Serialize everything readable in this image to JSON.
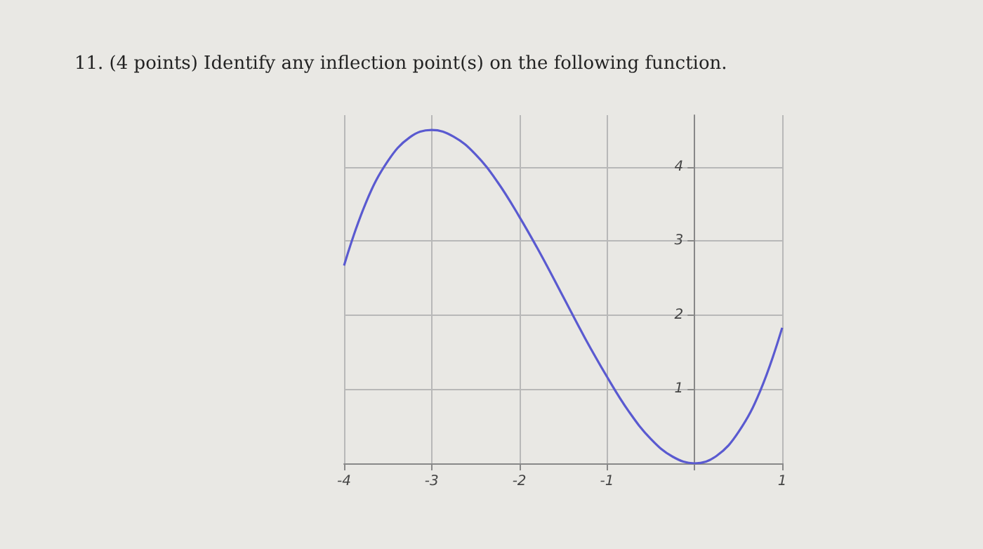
{
  "chart_data": {
    "type": "line",
    "title": "11. (4 points) Identify any inflection point(s) on the following function.",
    "x": [
      -4,
      -3.75,
      -3.5,
      -3.25,
      -3,
      -2.75,
      -2.5,
      -2.25,
      -2,
      -1.75,
      -1.5,
      -1.25,
      -1,
      -0.75,
      -0.5,
      -0.25,
      0,
      0.25,
      0.5,
      0.75,
      1
    ],
    "series": [
      {
        "color": "#5a5ad0",
        "values": [
          2.67,
          3.52,
          4.08,
          4.4,
          4.5,
          4.41,
          4.17,
          3.8,
          3.33,
          2.81,
          2.25,
          1.69,
          1.17,
          0.7,
          0.33,
          0.09,
          0,
          0.1,
          0.42,
          0.98,
          1.83
        ]
      }
    ],
    "xlim": [
      -4,
      1
    ],
    "xticks": [
      -4,
      -3,
      -2,
      -1,
      {
        "value": 0,
        "label": null
      },
      1
    ],
    "ylim": [
      0,
      4.7
    ],
    "yticks": [
      {
        "value": 0,
        "label": null
      },
      1,
      2,
      3,
      4
    ],
    "grid": true,
    "marker": "none",
    "line_style": "solid"
  }
}
